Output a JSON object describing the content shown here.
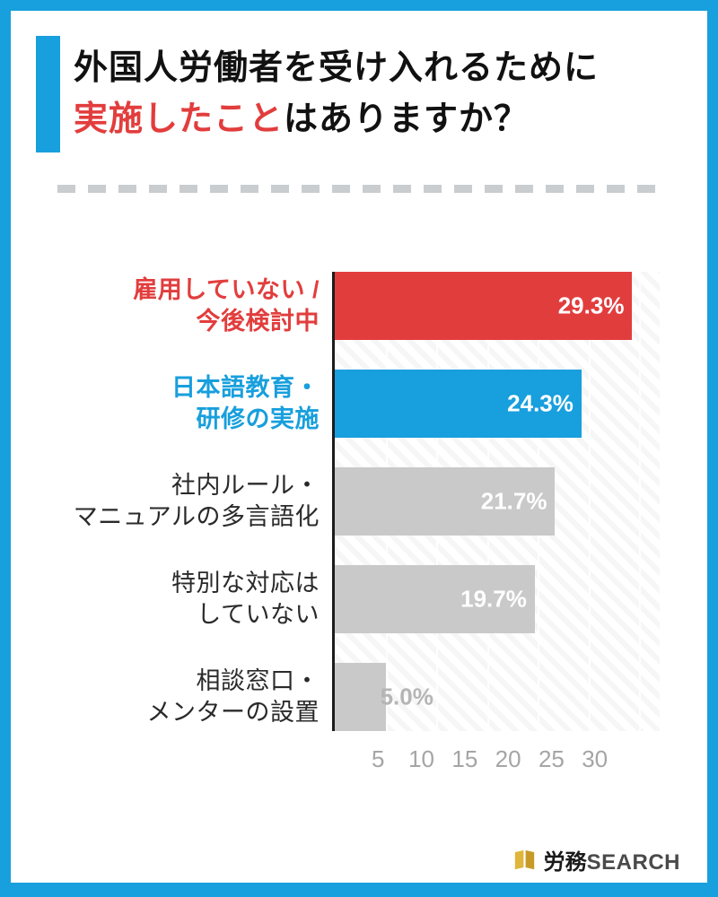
{
  "colors": {
    "frame_blue": "#189fdd",
    "accent_blue": "#189fdd",
    "highlight_red": "#e23d3d",
    "bar_gray": "#c9c9c9",
    "axis_black": "#1c1c1c",
    "tick_gray": "#a5a5a5",
    "divider_gray": "#c9cdd0",
    "text_black": "#111111",
    "logo_gold": "#d2a62c"
  },
  "title": {
    "line1": "外国人労働者を受け入れるために",
    "line2_highlight": "実施したこと",
    "line2_rest": "はありますか？"
  },
  "chart_data": {
    "type": "bar",
    "orientation": "horizontal",
    "title": "外国人労働者を受け入れるために実施したことはありますか？",
    "unit": "%",
    "categories": [
      "雇用していない / 今後検討中",
      "日本語教育・研修の実施",
      "社内ルール・マニュアルの多言語化",
      "特別な対応はしていない",
      "相談窓口・メンターの設置"
    ],
    "values": [
      29.3,
      24.3,
      21.7,
      19.7,
      5.0
    ],
    "xlabel": "",
    "ylabel": "",
    "xlim": [
      0,
      30
    ],
    "x_display_max": 32,
    "xticks": [
      5,
      10,
      15,
      20,
      25,
      30
    ],
    "grid": true,
    "legend": "none",
    "rows": [
      {
        "label_lines": [
          "雇用していない /",
          "今後検討中"
        ],
        "label_color": "#e23d3d",
        "label_bold": true,
        "value": 29.3,
        "value_label": "29.3%",
        "bar_color": "#e23d3d",
        "value_inside": true,
        "value_color": "#ffffff"
      },
      {
        "label_lines": [
          "日本語教育・",
          "研修の実施"
        ],
        "label_color": "#189fdd",
        "label_bold": true,
        "value": 24.3,
        "value_label": "24.3%",
        "bar_color": "#189fdd",
        "value_inside": true,
        "value_color": "#ffffff"
      },
      {
        "label_lines": [
          "社内ルール・",
          "マニュアルの多言語化"
        ],
        "label_color": "#2a2a2a",
        "label_bold": false,
        "value": 21.7,
        "value_label": "21.7%",
        "bar_color": "#c9c9c9",
        "value_inside": true,
        "value_color": "#ffffff"
      },
      {
        "label_lines": [
          "特別な対応は",
          "していない"
        ],
        "label_color": "#2a2a2a",
        "label_bold": false,
        "value": 19.7,
        "value_label": "19.7%",
        "bar_color": "#c9c9c9",
        "value_inside": true,
        "value_color": "#ffffff"
      },
      {
        "label_lines": [
          "相談窓口・",
          "メンターの設置"
        ],
        "label_color": "#2a2a2a",
        "label_bold": false,
        "value": 5.0,
        "value_label": "5.0%",
        "bar_color": "#c9c9c9",
        "value_inside": false,
        "value_color": "#b5b5b5"
      }
    ]
  },
  "footer": {
    "brand_prefix": "労務",
    "brand_suffix": "SEARCH"
  }
}
